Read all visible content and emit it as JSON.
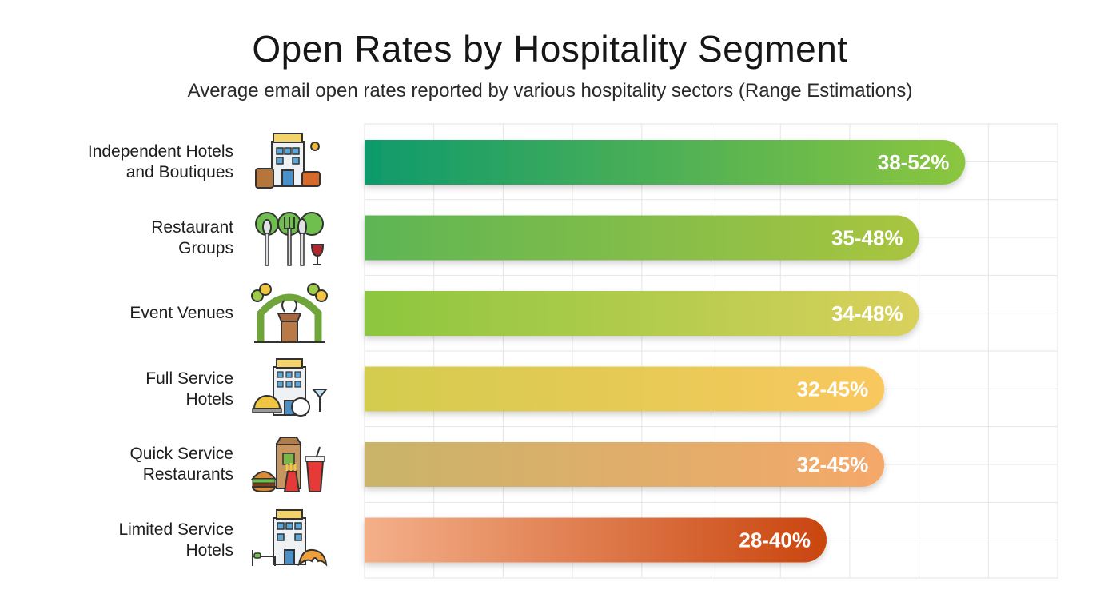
{
  "title": "Open Rates by Hospitality Segment",
  "subtitle": "Average email open rates reported by various hospitality sectors (Range Estimations)",
  "chart_data": {
    "type": "bar",
    "orientation": "horizontal",
    "title": "Open Rates by Hospitality Segment",
    "subtitle": "Average email open rates reported by various hospitality sectors (Range Estimations)",
    "xlabel": "",
    "ylabel": "",
    "xlim": [
      0,
      60
    ],
    "grid": true,
    "legend": "none",
    "categories": [
      {
        "line1": "Independent Hotels",
        "line2": "and Boutiques",
        "icon": "hotel-luggage-icon"
      },
      {
        "line1": "Restaurant",
        "line2": "Groups",
        "icon": "cutlery-wine-icon"
      },
      {
        "line1": "Event Venues",
        "line2": "",
        "icon": "event-arch-podium-icon"
      },
      {
        "line1": "Full Service",
        "line2": "Hotels",
        "icon": "hotel-service-icon"
      },
      {
        "line1": "Quick Service",
        "line2": "Restaurants",
        "icon": "fast-food-icon"
      },
      {
        "line1": "Limited Service",
        "line2": "Hotels",
        "icon": "hotel-bed-croissant-icon"
      }
    ],
    "bars": [
      {
        "low": 38,
        "high": 52,
        "label": "38-52%",
        "color_start": "#0e9a6c",
        "color_end": "#8cc63f"
      },
      {
        "low": 35,
        "high": 48,
        "label": "35-48%",
        "color_start": "#5db554",
        "color_end": "#a9c53f"
      },
      {
        "low": 34,
        "high": 48,
        "label": "34-48%",
        "color_start": "#8cc63f",
        "color_end": "#d9d15c"
      },
      {
        "low": 32,
        "high": 45,
        "label": "32-45%",
        "color_start": "#d3cc4e",
        "color_end": "#f9c85e"
      },
      {
        "low": 32,
        "high": 45,
        "label": "32-45%",
        "color_start": "#c9b46a",
        "color_end": "#f5a86a"
      },
      {
        "low": 28,
        "high": 40,
        "label": "28-40%",
        "color_start": "#f4b08a",
        "color_end": "#c9450e"
      }
    ]
  }
}
